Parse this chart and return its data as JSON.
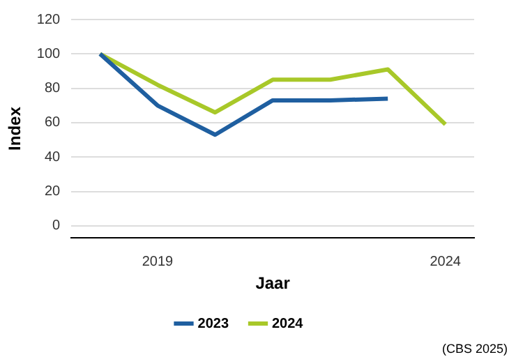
{
  "chart_data": {
    "type": "line",
    "xlabel": "Jaar",
    "ylabel": "Index",
    "categories": [
      null,
      "2019",
      null,
      null,
      null,
      null,
      "2024"
    ],
    "series": [
      {
        "name": "2023",
        "color": "#1f5fa0",
        "values": [
          100,
          70,
          53,
          73,
          73,
          74,
          null
        ]
      },
      {
        "name": "2024",
        "color": "#a8c829",
        "values": [
          100,
          82,
          66,
          85,
          85,
          91,
          59
        ]
      }
    ],
    "ylim": [
      -7,
      120
    ],
    "yticks": [
      0,
      20,
      40,
      60,
      80,
      100,
      120
    ],
    "grid": "y",
    "legend": "bottom",
    "marker": "none",
    "line_style": "solid",
    "annotations": [
      "(CBS 2025)"
    ]
  }
}
